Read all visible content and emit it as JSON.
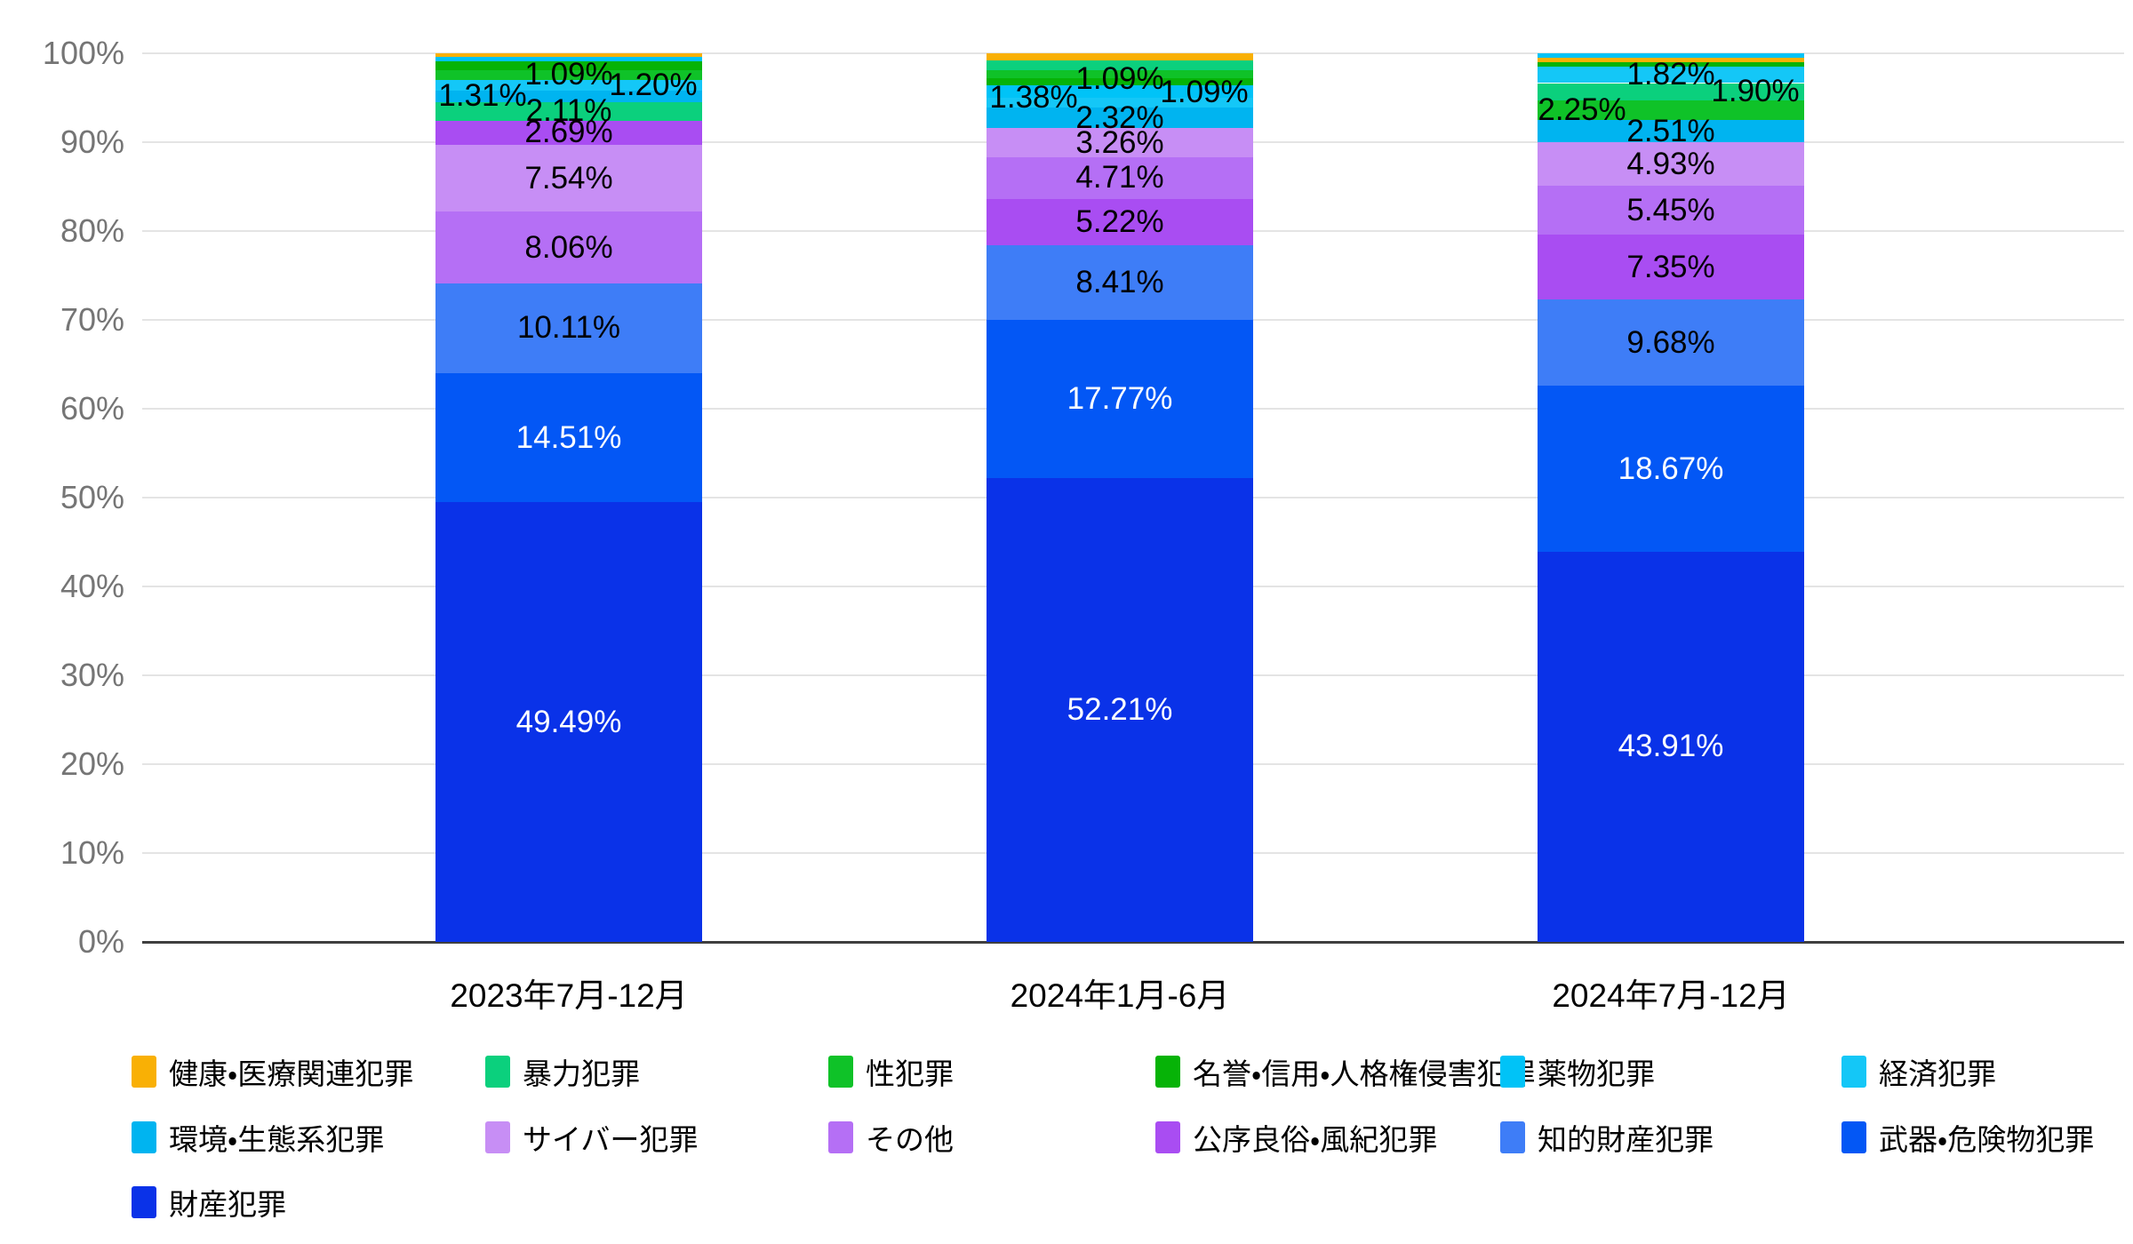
{
  "chart_data": {
    "type": "bar",
    "subtype": "stacked-100-percent",
    "title": "",
    "xlabel": "",
    "ylabel": "",
    "ylim": [
      0,
      100
    ],
    "grid": true,
    "legend_position": "bottom",
    "y_axis_ticks": [
      "0%",
      "10%",
      "20%",
      "30%",
      "40%",
      "50%",
      "60%",
      "70%",
      "80%",
      "90%",
      "100%"
    ],
    "categories": [
      {
        "id": 0,
        "label": "健康・医療関連犯罪",
        "color": "#F9B005",
        "value_text": "dark"
      },
      {
        "id": 1,
        "label": "暴力犯罪",
        "color": "#0BD07D",
        "value_text": "dark"
      },
      {
        "id": 2,
        "label": "性犯罪",
        "color": "#0FC228",
        "value_text": "dark"
      },
      {
        "id": 3,
        "label": "名誉・信用・人格権侵害犯罪",
        "color": "#06B307",
        "value_text": "dark"
      },
      {
        "id": 4,
        "label": "薬物犯罪",
        "color": "#00C3F7",
        "value_text": "dark"
      },
      {
        "id": 5,
        "label": "経済犯罪",
        "color": "#14C7F7",
        "value_text": "dark"
      },
      {
        "id": 6,
        "label": "環境・生態系犯罪",
        "color": "#00B4F0",
        "value_text": "dark"
      },
      {
        "id": 7,
        "label": "サイバー犯罪",
        "color": "#C78EF5",
        "value_text": "dark"
      },
      {
        "id": 8,
        "label": "その他",
        "color": "#B56FF5",
        "value_text": "dark"
      },
      {
        "id": 9,
        "label": "公序良俗・風紀犯罪",
        "color": "#A94DF2",
        "value_text": "dark"
      },
      {
        "id": 10,
        "label": "知的財産犯罪",
        "color": "#3E7DF7",
        "value_text": "dark"
      },
      {
        "id": 11,
        "label": "武器・危険物犯罪",
        "color": "#0357F5",
        "value_text": "light"
      },
      {
        "id": 12,
        "label": "財産犯罪",
        "color": "#0A32E8",
        "value_text": "light"
      }
    ],
    "bars": [
      {
        "period": "2023年7月-12月",
        "segments_top_to_bottom": [
          {
            "cat": 0,
            "value": 0.44,
            "label": ""
          },
          {
            "cat": 4,
            "value": 0.46,
            "label": ""
          },
          {
            "cat": 3,
            "value": 0.99,
            "label": ""
          },
          {
            "cat": 2,
            "value": 1.09,
            "label": "1.09%"
          },
          {
            "cat": 5,
            "value": 1.2,
            "label": "1.20%",
            "dx": 95
          },
          {
            "cat": 6,
            "value": 1.31,
            "label": "1.31%",
            "dx": -97
          },
          {
            "cat": 1,
            "value": 2.11,
            "label": "2.11%"
          },
          {
            "cat": 9,
            "value": 2.69,
            "label": "2.69%"
          },
          {
            "cat": 7,
            "value": 7.54,
            "label": "7.54%"
          },
          {
            "cat": 8,
            "value": 8.06,
            "label": "8.06%"
          },
          {
            "cat": 10,
            "value": 10.11,
            "label": "10.11%"
          },
          {
            "cat": 11,
            "value": 14.51,
            "label": "14.51%"
          },
          {
            "cat": 12,
            "value": 49.49,
            "label": "49.49%"
          }
        ]
      },
      {
        "period": "2024年1月-6月",
        "segments_top_to_bottom": [
          {
            "cat": 0,
            "value": 0.77,
            "label": ""
          },
          {
            "cat": 1,
            "value": 1.09,
            "label": "1.09%",
            "dy": 16
          },
          {
            "cat": 2,
            "value": 0.95,
            "label": ""
          },
          {
            "cat": 3,
            "value": 0.82,
            "label": ""
          },
          {
            "cat": 4,
            "value": 1.38,
            "label": "1.38%",
            "dx": -97,
            "dy": 7
          },
          {
            "cat": 5,
            "value": 1.09,
            "label": "1.09%",
            "dx": 95,
            "dy": -12
          },
          {
            "cat": 6,
            "value": 2.32,
            "label": "2.32%"
          },
          {
            "cat": 7,
            "value": 3.26,
            "label": "3.26%"
          },
          {
            "cat": 8,
            "value": 4.71,
            "label": "4.71%"
          },
          {
            "cat": 9,
            "value": 5.22,
            "label": "5.22%"
          },
          {
            "cat": 10,
            "value": 8.41,
            "label": "8.41%"
          },
          {
            "cat": 11,
            "value": 17.77,
            "label": "17.77%"
          },
          {
            "cat": 12,
            "value": 52.21,
            "label": "52.21%"
          }
        ]
      },
      {
        "period": "2024年7月-12月",
        "segments_top_to_bottom": [
          {
            "cat": 4,
            "value": 0.49,
            "label": ""
          },
          {
            "cat": 0,
            "value": 0.52,
            "label": ""
          },
          {
            "cat": 3,
            "value": 0.52,
            "label": ""
          },
          {
            "cat": 5,
            "value": 1.82,
            "label": "1.82%"
          },
          {
            "cat": 1,
            "value": 1.9,
            "label": "1.90%",
            "dx": 95
          },
          {
            "cat": 2,
            "value": 2.25,
            "label": "2.25%",
            "dx": -100
          },
          {
            "cat": 6,
            "value": 2.51,
            "label": "2.51%"
          },
          {
            "cat": 7,
            "value": 4.93,
            "label": "4.93%"
          },
          {
            "cat": 8,
            "value": 5.45,
            "label": "5.45%"
          },
          {
            "cat": 9,
            "value": 7.35,
            "label": "7.35%"
          },
          {
            "cat": 10,
            "value": 9.68,
            "label": "9.68%"
          },
          {
            "cat": 11,
            "value": 18.67,
            "label": "18.67%"
          },
          {
            "cat": 12,
            "value": 43.91,
            "label": "43.91%"
          }
        ]
      }
    ],
    "legend_rows": [
      [
        0,
        1,
        2,
        3,
        4,
        5
      ],
      [
        6,
        7,
        8,
        9,
        10,
        11
      ],
      [
        12
      ]
    ]
  },
  "style_colors": {
    "gridline": "#e4e4e4",
    "axis_baseline": "#3f3f3f",
    "axis_tick_text": "#757575",
    "value_label_dark": "#000000",
    "value_label_light": "#ffffff"
  }
}
